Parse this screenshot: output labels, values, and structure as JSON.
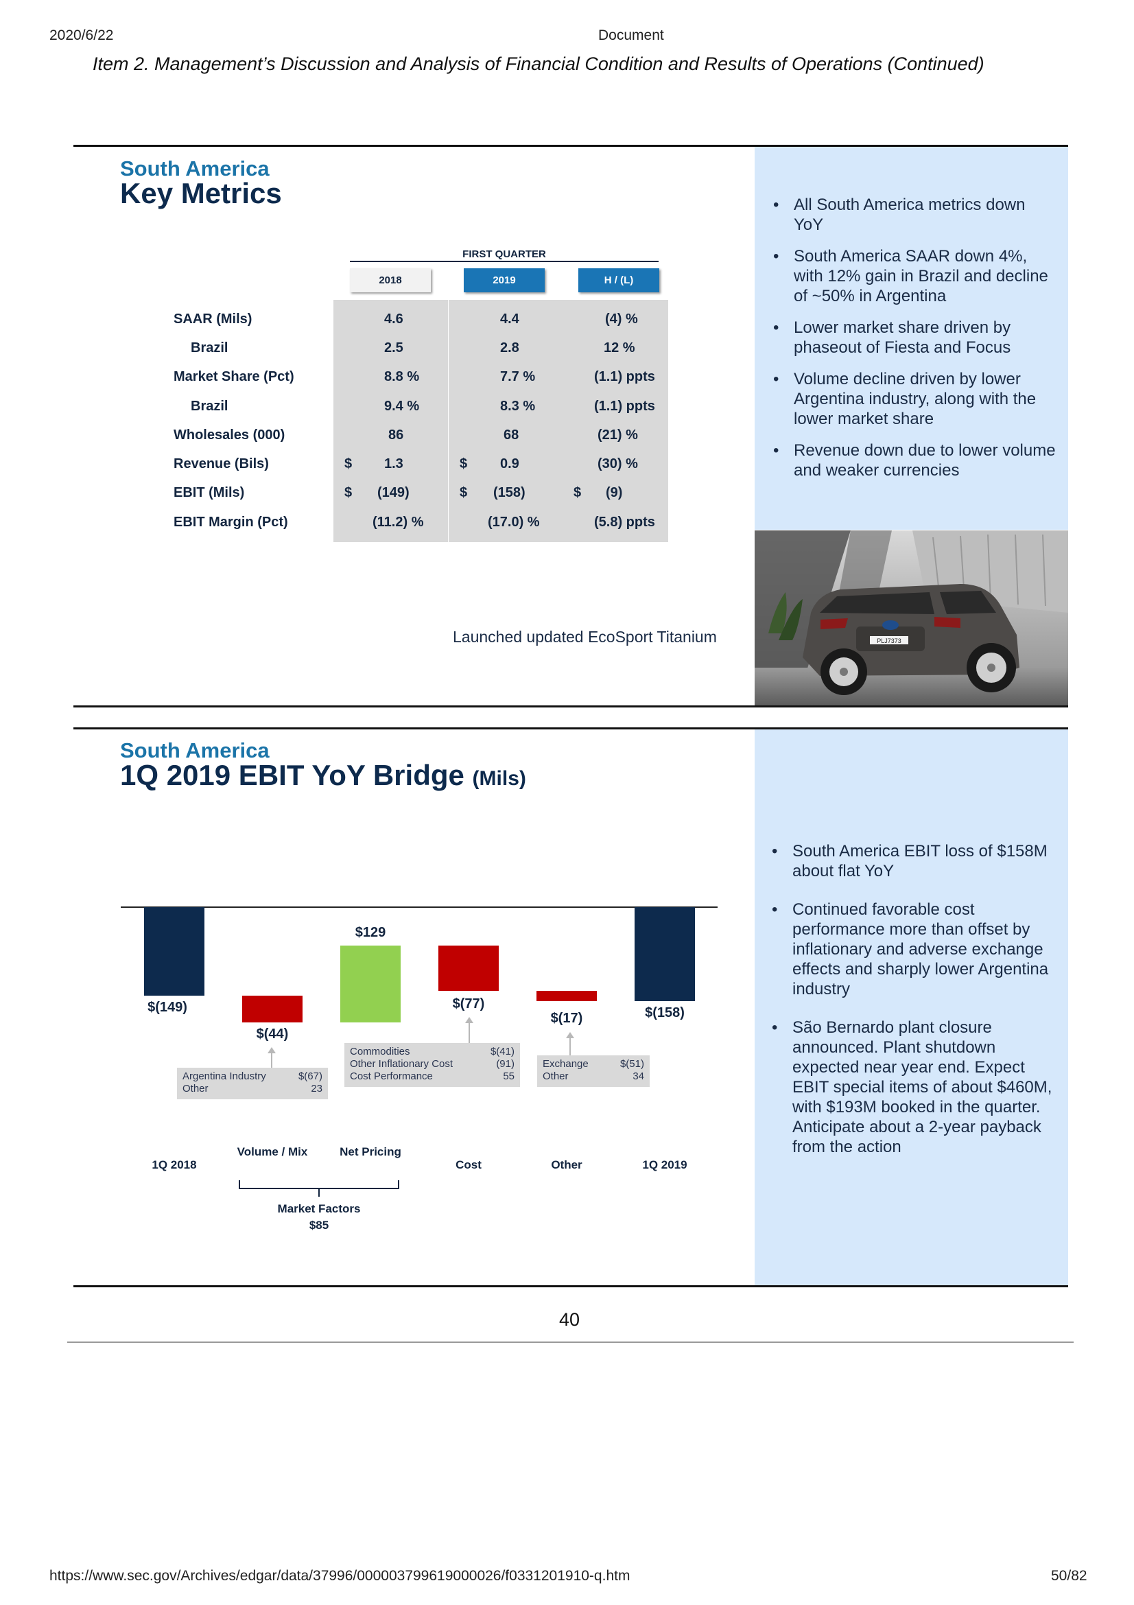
{
  "browser_header": {
    "date": "2020/6/22",
    "title": "Document"
  },
  "section_heading": "Item 2. Management’s Discussion and Analysis of Financial Condition and Results of Operations (Continued)",
  "slide1": {
    "region": "South America",
    "title": "Key Metrics",
    "table": {
      "group_header": "FIRST QUARTER",
      "columns": [
        "2018",
        "2019",
        "H / (L)"
      ],
      "rows": [
        {
          "label": "SAAR (Mils)",
          "c2018": "4.6",
          "c2019": "4.4",
          "hl": "(4) %"
        },
        {
          "label": "Brazil",
          "c2018": "2.5",
          "c2019": "2.8",
          "hl": "12  %"
        },
        {
          "label": "Market Share (Pct)",
          "c2018": "8.8  %",
          "c2019": "7.7  %",
          "hl": "(1.1) ppts"
        },
        {
          "label": "Brazil",
          "c2018": "9.4  %",
          "c2019": "8.3  %",
          "hl": "(1.1) ppts"
        },
        {
          "label": "Wholesales (000)",
          "c2018": "86",
          "c2019": "68",
          "hl": "(21) %"
        },
        {
          "label": "Revenue (Bils)",
          "d2018": "$",
          "c2018": "1.3",
          "d2019": "$",
          "c2019": "0.9",
          "hl": "(30) %"
        },
        {
          "label": "EBIT (Mils)",
          "d2018": "$",
          "c2018": "(149)",
          "d2019": "$",
          "c2019": "(158)",
          "dhl": "$",
          "hl": "(9)"
        },
        {
          "label": "EBIT Margin (Pct)",
          "c2018": "(11.2) %",
          "c2019": "(17.0) %",
          "hl": "(5.8) ppts"
        }
      ]
    },
    "caption": "Launched updated EcoSport Titanium",
    "photo_plate": "PLJ7373",
    "bullets": [
      "All South America metrics down YoY",
      "South America SAAR down 4%, with 12% gain in Brazil and decline of ~50% in Argentina",
      "Lower market share driven by phaseout of Fiesta and Focus",
      "Volume decline driven by lower Argentina industry, along with the lower market share",
      "Revenue down due to lower volume and weaker currencies"
    ]
  },
  "slide2": {
    "region": "South America",
    "title": "1Q 2019 EBIT YoY Bridge",
    "title_unit": "(Mils)",
    "bullets": [
      "South America EBIT loss of $158M about flat YoY",
      "Continued favorable cost performance more than offset by inflationary and adverse exchange effects and sharply lower Argentina industry",
      "São Bernardo plant closure announced.  Plant shutdown expected near year end. Expect EBIT special items of about $460M, with $193M booked in the quarter. Anticipate about a 2-year payback from the action"
    ],
    "chart_data": {
      "type": "bar",
      "subtype": "waterfall",
      "categories": [
        "1Q 2018",
        "Volume / Mix",
        "Net Pricing",
        "Cost",
        "Other",
        "1Q 2019"
      ],
      "values": [
        -149,
        -44,
        129,
        -77,
        -17,
        -158
      ],
      "value_labels": [
        "$(149)",
        "$(44)",
        "$129",
        "$(77)",
        "$(17)",
        "$(158)"
      ],
      "bar_kinds": [
        "total",
        "decrease",
        "increase",
        "decrease",
        "decrease",
        "total"
      ],
      "colors": {
        "total": "#0d2a4d",
        "decrease": "#c00000",
        "increase": "#92d050"
      },
      "details": {
        "volume_mix": [
          {
            "label": "Argentina Industry",
            "value": "$(67)"
          },
          {
            "label": "Other",
            "value": "23"
          }
        ],
        "cost": [
          {
            "label": "Commodities",
            "value": "$(41)"
          },
          {
            "label": "Other Inflationary Cost",
            "value": "(91)"
          },
          {
            "label": "Cost Performance",
            "value": "55"
          }
        ],
        "other": [
          {
            "label": "Exchange",
            "value": "$(51)"
          },
          {
            "label": "Other",
            "value": "34"
          }
        ]
      },
      "market_factors": {
        "label": "Market Factors",
        "value": "$85"
      }
    }
  },
  "page_number": "40",
  "footer": {
    "url": "https://www.sec.gov/Archives/edgar/data/37996/000003799619000026/f0331201910-q.htm",
    "page": "50/82"
  }
}
